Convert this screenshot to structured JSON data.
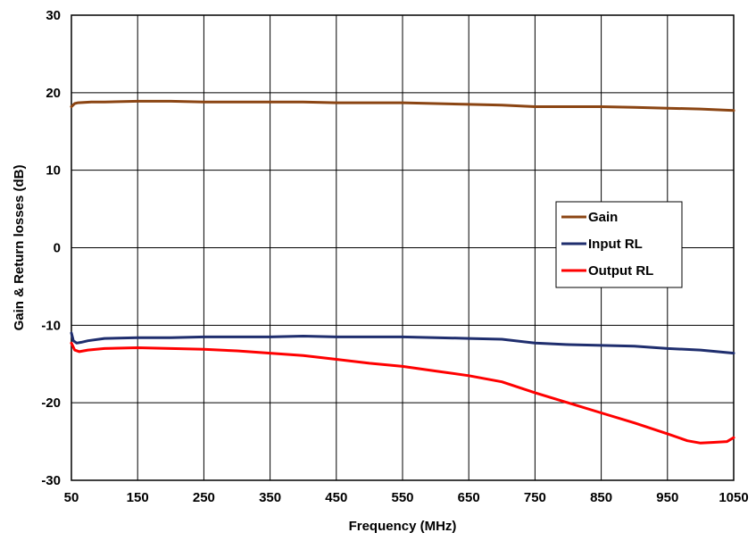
{
  "chart_data": {
    "type": "line",
    "title": "",
    "xlabel": "Frequency (MHz)",
    "ylabel": "Gain & Return losses (dB)",
    "xlim": [
      50,
      1050
    ],
    "ylim": [
      -30,
      30
    ],
    "x_ticks": [
      "50",
      "150",
      "250",
      "350",
      "450",
      "550",
      "650",
      "750",
      "850",
      "950",
      "1050"
    ],
    "y_ticks": [
      "30",
      "20",
      "10",
      "0",
      "-10",
      "-20",
      "-30"
    ],
    "grid": true,
    "legend_position": "right-center",
    "series": [
      {
        "name": "Gain",
        "color": "#8B4513",
        "points": [
          [
            50,
            18.2
          ],
          [
            55,
            18.6
          ],
          [
            60,
            18.7
          ],
          [
            80,
            18.8
          ],
          [
            100,
            18.8
          ],
          [
            150,
            18.9
          ],
          [
            200,
            18.9
          ],
          [
            250,
            18.8
          ],
          [
            300,
            18.8
          ],
          [
            350,
            18.8
          ],
          [
            400,
            18.8
          ],
          [
            450,
            18.7
          ],
          [
            500,
            18.7
          ],
          [
            550,
            18.7
          ],
          [
            600,
            18.6
          ],
          [
            650,
            18.5
          ],
          [
            700,
            18.4
          ],
          [
            750,
            18.2
          ],
          [
            800,
            18.2
          ],
          [
            850,
            18.2
          ],
          [
            900,
            18.1
          ],
          [
            950,
            18.0
          ],
          [
            1000,
            17.9
          ],
          [
            1050,
            17.7
          ]
        ]
      },
      {
        "name": "Input RL",
        "color": "#1F2E6E",
        "points": [
          [
            50,
            -11.0
          ],
          [
            53,
            -12.0
          ],
          [
            58,
            -12.3
          ],
          [
            65,
            -12.2
          ],
          [
            75,
            -12.0
          ],
          [
            100,
            -11.7
          ],
          [
            150,
            -11.6
          ],
          [
            200,
            -11.6
          ],
          [
            250,
            -11.5
          ],
          [
            300,
            -11.5
          ],
          [
            350,
            -11.5
          ],
          [
            400,
            -11.4
          ],
          [
            450,
            -11.5
          ],
          [
            500,
            -11.5
          ],
          [
            550,
            -11.5
          ],
          [
            600,
            -11.6
          ],
          [
            650,
            -11.7
          ],
          [
            700,
            -11.8
          ],
          [
            750,
            -12.3
          ],
          [
            800,
            -12.5
          ],
          [
            850,
            -12.6
          ],
          [
            900,
            -12.7
          ],
          [
            950,
            -13.0
          ],
          [
            1000,
            -13.2
          ],
          [
            1050,
            -13.6
          ]
        ]
      },
      {
        "name": "Output RL",
        "color": "#FF0000",
        "points": [
          [
            50,
            -12.3
          ],
          [
            55,
            -13.2
          ],
          [
            62,
            -13.4
          ],
          [
            75,
            -13.2
          ],
          [
            100,
            -13.0
          ],
          [
            150,
            -12.9
          ],
          [
            200,
            -13.0
          ],
          [
            250,
            -13.1
          ],
          [
            300,
            -13.3
          ],
          [
            350,
            -13.6
          ],
          [
            400,
            -13.9
          ],
          [
            450,
            -14.4
          ],
          [
            500,
            -14.9
          ],
          [
            550,
            -15.3
          ],
          [
            600,
            -15.9
          ],
          [
            650,
            -16.5
          ],
          [
            700,
            -17.3
          ],
          [
            750,
            -18.7
          ],
          [
            800,
            -20.0
          ],
          [
            850,
            -21.3
          ],
          [
            900,
            -22.6
          ],
          [
            950,
            -24.0
          ],
          [
            980,
            -24.9
          ],
          [
            1000,
            -25.2
          ],
          [
            1020,
            -25.1
          ],
          [
            1040,
            -25.0
          ],
          [
            1050,
            -24.5
          ]
        ]
      }
    ]
  }
}
